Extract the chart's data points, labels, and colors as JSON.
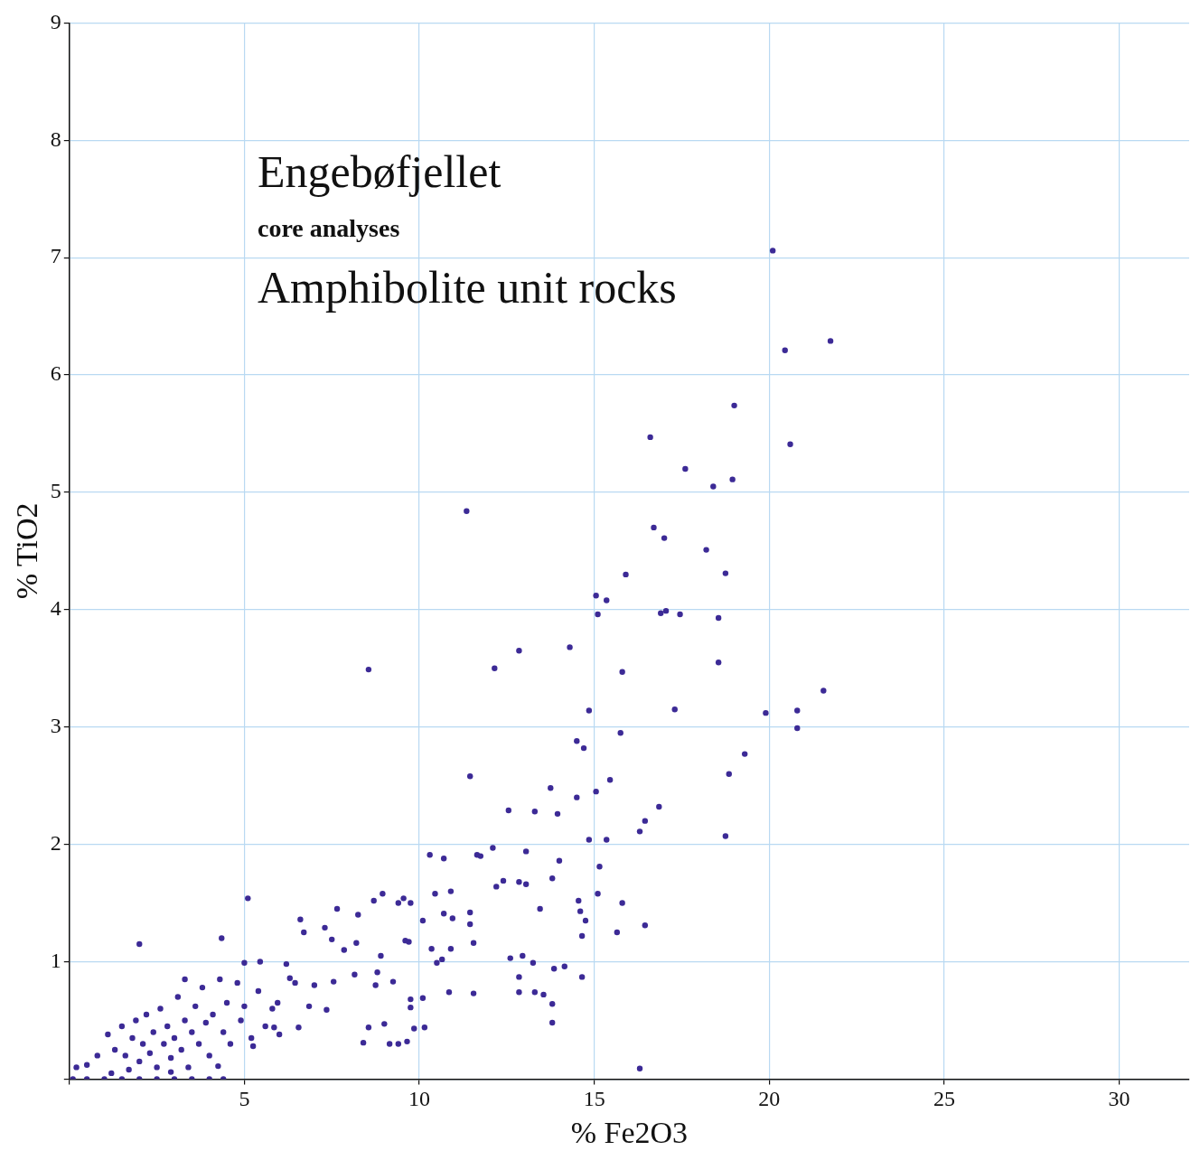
{
  "chart_data": {
    "type": "scatter",
    "title": "Engebøfjellet",
    "subtitle": "core analyses",
    "annotations": [
      "Amphibolite unit rocks"
    ],
    "xlabel": "% Fe2O3",
    "ylabel": "% TiO2",
    "xlim": [
      0,
      32
    ],
    "xticks": [
      {
        "value": 0,
        "label": null
      },
      5,
      10,
      15,
      20,
      25,
      30
    ],
    "ylim": [
      0,
      9
    ],
    "yticks": [
      {
        "value": 0,
        "label": null
      },
      1,
      2,
      3,
      4,
      5,
      6,
      7,
      8,
      9
    ],
    "grid": true,
    "legend": false,
    "marker": "circle",
    "series": [
      {
        "color": "#3c2a96",
        "x": [
          20.1,
          21.75,
          20.45,
          19.0,
          20.6,
          16.6,
          17.6,
          18.95,
          18.4,
          11.35,
          16.7,
          17.0,
          18.2,
          15.9,
          18.75,
          15.05,
          15.35,
          15.1,
          16.9,
          17.05,
          17.45,
          18.55,
          14.3,
          12.85,
          12.15,
          8.55,
          15.8,
          18.55,
          14.85,
          17.3,
          19.9,
          20.8,
          21.55,
          20.8,
          15.75,
          14.5,
          14.7,
          19.3,
          18.85,
          11.45,
          15.45,
          13.75,
          15.05,
          14.5,
          16.85,
          12.55,
          13.3,
          13.95,
          16.45,
          16.3,
          18.75,
          14.85,
          15.35,
          12.1,
          13.05,
          11.65,
          11.75,
          10.3,
          10.7,
          14.0,
          15.15,
          12.2,
          12.4,
          12.85,
          13.05,
          15.1,
          15.8,
          15.65,
          16.45,
          13.8,
          13.45,
          14.55,
          14.6,
          14.65,
          14.75,
          11.45,
          10.45,
          10.9,
          5.1,
          2.0,
          4.35,
          8.95,
          9.4,
          9.55,
          9.75,
          8.7,
          7.65,
          8.25,
          10.1,
          10.7,
          10.95,
          11.45,
          6.6,
          6.7,
          7.3,
          7.5,
          7.85,
          8.2,
          8.9,
          9.6,
          9.7,
          10.35,
          10.65,
          10.9,
          11.55,
          12.6,
          12.95,
          13.25,
          13.85,
          14.15,
          14.65,
          12.85,
          12.85,
          13.3,
          13.55,
          13.8,
          13.8,
          11.55,
          10.85,
          10.1,
          9.75,
          9.75,
          10.15,
          9.85,
          9.15,
          9.4,
          9.65,
          9.0,
          8.4,
          8.55,
          8.8,
          8.75,
          9.25,
          8.15,
          7.55,
          7.0,
          6.85,
          6.55,
          7.35,
          6.2,
          6.3,
          6.45,
          5.95,
          5.45,
          5.0,
          5.85,
          5.25,
          16.3,
          4.25,
          10.5,
          0.1,
          0.5,
          1.0,
          1.5,
          2.0,
          2.5,
          3.0,
          3.5,
          4.0,
          4.4,
          0.2,
          1.1,
          1.3,
          1.5,
          1.6,
          1.8,
          1.9,
          2.0,
          2.1,
          2.2,
          2.3,
          2.4,
          2.5,
          2.6,
          2.7,
          2.8,
          2.9,
          3.0,
          3.1,
          3.2,
          3.3,
          3.4,
          3.5,
          3.6,
          3.7,
          3.8,
          3.9,
          4.0,
          4.1,
          4.3,
          4.4,
          4.5,
          4.6,
          4.8,
          4.9,
          5.0,
          5.2,
          5.4,
          5.6,
          5.8,
          6.0,
          0.5,
          0.8,
          1.2,
          1.7,
          2.9,
          3.3
        ],
        "values": [
          7.06,
          6.29,
          6.21,
          5.74,
          5.41,
          5.47,
          5.2,
          5.11,
          5.05,
          4.84,
          4.7,
          4.61,
          4.51,
          4.3,
          4.31,
          4.12,
          4.08,
          3.96,
          3.97,
          3.99,
          3.96,
          3.93,
          3.68,
          3.65,
          3.5,
          3.49,
          3.47,
          3.55,
          3.14,
          3.15,
          3.12,
          3.14,
          3.31,
          2.99,
          2.95,
          2.88,
          2.82,
          2.77,
          2.6,
          2.58,
          2.55,
          2.48,
          2.45,
          2.4,
          2.32,
          2.29,
          2.28,
          2.26,
          2.2,
          2.11,
          2.07,
          2.04,
          2.04,
          1.97,
          1.94,
          1.91,
          1.9,
          1.91,
          1.88,
          1.86,
          1.81,
          1.64,
          1.69,
          1.68,
          1.66,
          1.58,
          1.5,
          1.25,
          1.31,
          1.71,
          1.45,
          1.52,
          1.43,
          1.22,
          1.35,
          1.42,
          1.58,
          1.6,
          1.54,
          1.15,
          1.2,
          1.58,
          1.5,
          1.54,
          1.5,
          1.52,
          1.45,
          1.4,
          1.35,
          1.41,
          1.37,
          1.32,
          1.36,
          1.25,
          1.29,
          1.19,
          1.1,
          1.16,
          1.05,
          1.18,
          1.17,
          1.11,
          1.02,
          1.11,
          1.16,
          1.03,
          1.05,
          0.99,
          0.94,
          0.96,
          0.87,
          0.87,
          0.74,
          0.74,
          0.72,
          0.64,
          0.48,
          0.73,
          0.74,
          0.69,
          0.68,
          0.61,
          0.44,
          0.43,
          0.3,
          0.3,
          0.32,
          0.47,
          0.31,
          0.44,
          0.91,
          0.8,
          0.83,
          0.89,
          0.83,
          0.8,
          0.62,
          0.44,
          0.59,
          0.98,
          0.86,
          0.82,
          0.65,
          1.0,
          0.99,
          0.44,
          0.28,
          0.09,
          0.11,
          0.99,
          0,
          0,
          0,
          0,
          0,
          0,
          0,
          0,
          0,
          0,
          0.1,
          0.38,
          0.25,
          0.45,
          0.2,
          0.35,
          0.5,
          0.15,
          0.3,
          0.55,
          0.22,
          0.4,
          0.1,
          0.6,
          0.3,
          0.45,
          0.18,
          0.35,
          0.7,
          0.25,
          0.5,
          0.1,
          0.4,
          0.62,
          0.3,
          0.78,
          0.48,
          0.2,
          0.55,
          0.85,
          0.4,
          0.65,
          0.3,
          0.82,
          0.5,
          0.62,
          0.35,
          0.75,
          0.45,
          0.6,
          0.38,
          0.12,
          0.2,
          0.05,
          0.08,
          0.06,
          0.85
        ]
      }
    ]
  }
}
